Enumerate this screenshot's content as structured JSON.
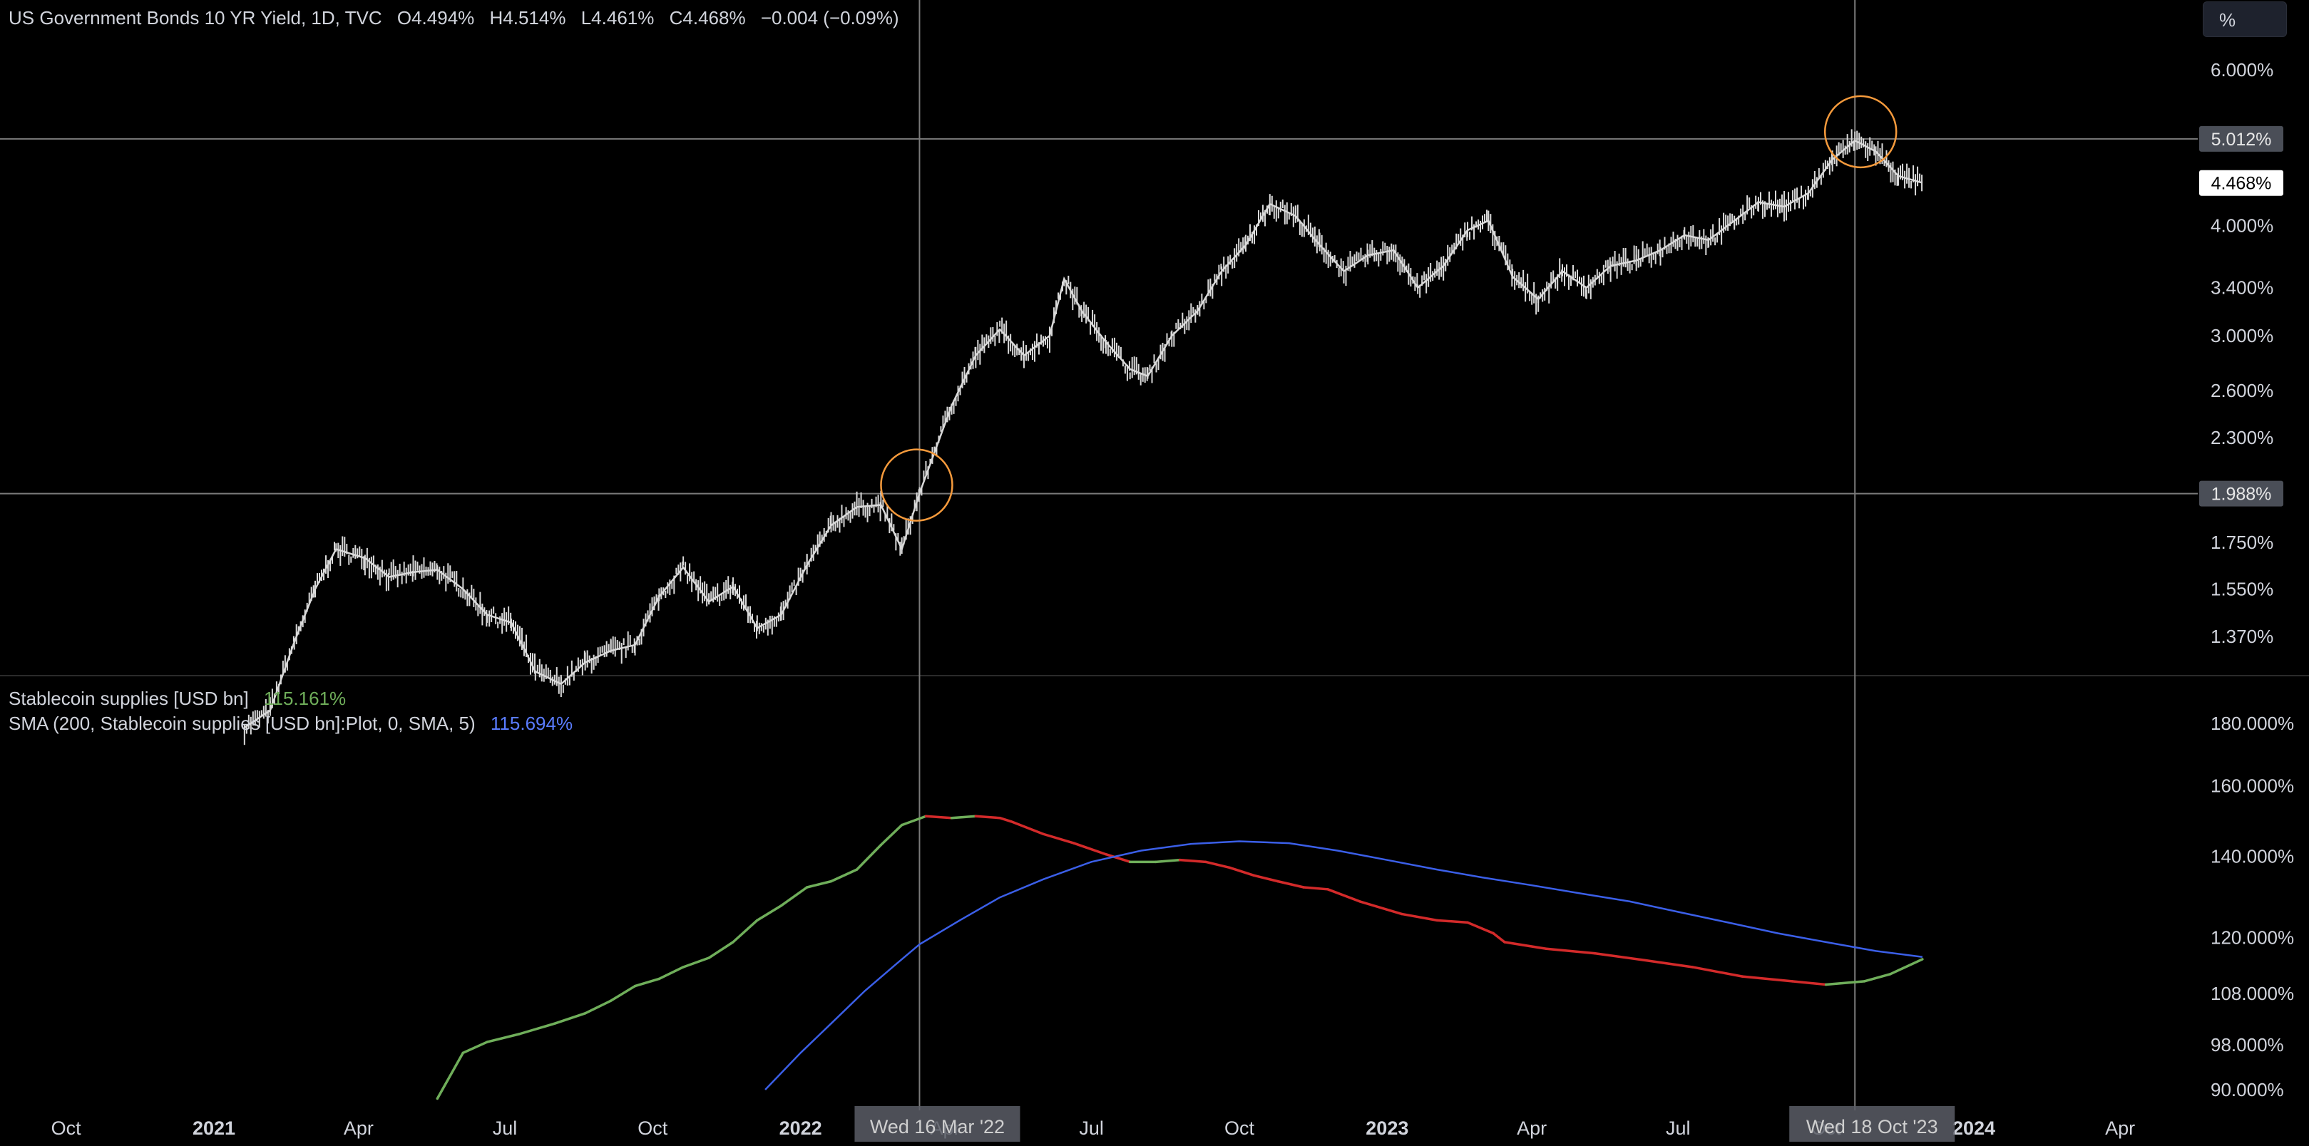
{
  "header": {
    "symbol": "US Government Bonds 10 YR Yield, 1D, TVC",
    "open": "O4.494%",
    "high": "H4.514%",
    "low": "L4.461%",
    "close": "C4.468%",
    "change": "−0.004 (−0.09%)"
  },
  "scale_button": "%",
  "crosshair": {
    "date_1": "Wed 16 Mar '22",
    "date_2": "Wed 18 Oct '23",
    "price_1": "1.988%",
    "price_2": "5.012%"
  },
  "indicator_legend": {
    "series1_name": "Stablecoin supplies [USD bn]",
    "series1_value": "115.161%",
    "series2_name": "SMA (200, Stablecoin supplies [USD bn]:Plot, 0, SMA, 5)",
    "series2_value": "115.694%"
  },
  "colors": {
    "background": "#000000",
    "price": "#d9d9d9",
    "stable_up": "#6fae5a",
    "stable_down": "#d32a2a",
    "sma": "#3b5fe8",
    "highlight_circle": "#f59a3c",
    "crosshair": "#7a7a7a"
  },
  "chart_data": [
    {
      "type": "line",
      "title": "US Government Bonds 10 YR Yield, 1D, TVC",
      "y_axis_scale": "log",
      "y_ticks": [
        "6.000%",
        "4.000%",
        "3.400%",
        "3.000%",
        "2.600%",
        "2.300%",
        "1.750%",
        "1.550%",
        "1.370%"
      ],
      "last_value_label": "4.468%",
      "x": [
        "2021-01-20",
        "2021-02-05",
        "2021-02-20",
        "2021-03-05",
        "2021-03-18",
        "2021-04-05",
        "2021-04-20",
        "2021-05-05",
        "2021-05-20",
        "2021-06-05",
        "2021-06-20",
        "2021-07-05",
        "2021-07-20",
        "2021-08-05",
        "2021-08-20",
        "2021-09-05",
        "2021-09-20",
        "2021-10-05",
        "2021-10-20",
        "2021-11-05",
        "2021-11-20",
        "2021-12-05",
        "2021-12-20",
        "2022-01-05",
        "2022-01-20",
        "2022-02-05",
        "2022-02-20",
        "2022-03-05",
        "2022-03-16",
        "2022-04-05",
        "2022-04-20",
        "2022-05-05",
        "2022-05-20",
        "2022-06-05",
        "2022-06-14",
        "2022-06-25",
        "2022-07-10",
        "2022-07-25",
        "2022-08-05",
        "2022-08-20",
        "2022-09-05",
        "2022-09-20",
        "2022-10-05",
        "2022-10-20",
        "2022-11-05",
        "2022-11-20",
        "2022-12-05",
        "2022-12-20",
        "2023-01-05",
        "2023-01-20",
        "2023-02-05",
        "2023-02-20",
        "2023-03-05",
        "2023-03-20",
        "2023-04-05",
        "2023-04-20",
        "2023-05-05",
        "2023-05-20",
        "2023-06-05",
        "2023-06-20",
        "2023-07-05",
        "2023-07-20",
        "2023-08-05",
        "2023-08-20",
        "2023-09-05",
        "2023-09-20",
        "2023-10-05",
        "2023-10-19",
        "2023-11-01",
        "2023-11-15",
        "2023-11-30"
      ],
      "y": [
        1.08,
        1.13,
        1.35,
        1.55,
        1.72,
        1.68,
        1.6,
        1.62,
        1.63,
        1.55,
        1.45,
        1.42,
        1.25,
        1.21,
        1.28,
        1.32,
        1.34,
        1.52,
        1.64,
        1.5,
        1.56,
        1.4,
        1.45,
        1.65,
        1.83,
        1.92,
        1.93,
        1.72,
        1.99,
        2.5,
        2.85,
        3.05,
        2.85,
        3.0,
        3.48,
        3.2,
        2.95,
        2.75,
        2.7,
        3.0,
        3.2,
        3.55,
        3.8,
        4.23,
        4.1,
        3.8,
        3.55,
        3.7,
        3.75,
        3.4,
        3.6,
        3.95,
        4.05,
        3.5,
        3.3,
        3.55,
        3.4,
        3.6,
        3.65,
        3.75,
        3.9,
        3.85,
        4.05,
        4.25,
        4.2,
        4.35,
        4.75,
        4.99,
        4.85,
        4.55,
        4.47
      ]
    },
    {
      "type": "line",
      "y_axis_scale": "log",
      "y_ticks": [
        "180.000%",
        "160.000%",
        "140.000%",
        "120.000%",
        "108.000%",
        "98.000%",
        "90.000%"
      ],
      "series": [
        {
          "name": "Stablecoin supplies [USD bn]",
          "x": [
            "2021-05-20",
            "2021-06-05",
            "2021-06-20",
            "2021-07-10",
            "2021-08-01",
            "2021-08-20",
            "2021-09-05",
            "2021-09-20",
            "2021-10-05",
            "2021-10-20",
            "2021-11-05",
            "2021-11-20",
            "2021-12-05",
            "2021-12-20",
            "2022-01-05",
            "2022-01-20",
            "2022-02-05",
            "2022-02-20",
            "2022-03-05",
            "2022-03-20",
            "2022-04-05",
            "2022-04-20",
            "2022-05-05",
            "2022-05-12",
            "2022-06-01",
            "2022-06-20",
            "2022-07-10",
            "2022-07-25",
            "2022-08-10",
            "2022-08-25",
            "2022-09-10",
            "2022-09-25",
            "2022-10-10",
            "2022-10-25",
            "2022-11-10",
            "2022-11-25",
            "2022-12-15",
            "2023-01-10",
            "2023-02-01",
            "2023-02-20",
            "2023-03-08",
            "2023-03-15",
            "2023-04-10",
            "2023-05-10",
            "2023-06-10",
            "2023-07-10",
            "2023-08-10",
            "2023-09-10",
            "2023-10-01",
            "2023-10-25",
            "2023-11-10",
            "2023-11-30"
          ],
          "values": [
            88.5,
            96.5,
            98.5,
            100.0,
            102.0,
            104.0,
            106.5,
            109.5,
            111.0,
            113.5,
            115.5,
            119.0,
            124.0,
            127.5,
            132.0,
            133.5,
            136.5,
            143.0,
            148.5,
            151.0,
            150.5,
            151.0,
            150.5,
            149.5,
            146.0,
            143.5,
            140.5,
            138.5,
            138.5,
            139.0,
            138.5,
            137.0,
            135.0,
            133.5,
            132.0,
            131.5,
            128.5,
            125.5,
            124.0,
            123.5,
            121.0,
            119.0,
            117.5,
            116.5,
            115.0,
            113.5,
            111.5,
            110.5,
            109.8,
            110.5,
            112.0,
            115.2
          ]
        },
        {
          "name": "SMA (200, Stablecoin supplies [USD bn]:Plot, 0, SMA, 5)",
          "x": [
            "2021-12-10",
            "2022-01-01",
            "2022-01-20",
            "2022-02-10",
            "2022-03-01",
            "2022-03-16",
            "2022-04-10",
            "2022-05-05",
            "2022-06-01",
            "2022-07-01",
            "2022-08-01",
            "2022-09-01",
            "2022-10-01",
            "2022-11-01",
            "2022-12-01",
            "2023-01-01",
            "2023-02-01",
            "2023-03-01",
            "2023-04-01",
            "2023-05-01",
            "2023-06-01",
            "2023-07-01",
            "2023-08-01",
            "2023-09-01",
            "2023-10-01",
            "2023-11-01",
            "2023-11-30"
          ],
          "values": [
            90.0,
            96.5,
            102.0,
            108.5,
            114.0,
            118.5,
            124.0,
            129.5,
            134.0,
            138.5,
            141.5,
            143.3,
            144.0,
            143.5,
            141.5,
            139.0,
            136.5,
            134.5,
            132.5,
            130.5,
            128.5,
            126.0,
            123.5,
            121.0,
            119.0,
            117.0,
            115.7
          ]
        }
      ]
    }
  ],
  "x_axis_labels": [
    "Oct",
    "2021",
    "Apr",
    "Jul",
    "Oct",
    "2022",
    "Apr",
    "Jul",
    "Oct",
    "2023",
    "Apr",
    "Jul",
    "Oct",
    "2024",
    "Apr"
  ],
  "x_axis_dates": [
    "2020-10-01",
    "2021-01-01",
    "2021-04-01",
    "2021-07-01",
    "2021-10-01",
    "2022-01-01",
    "2022-04-01",
    "2022-07-01",
    "2022-10-01",
    "2023-01-01",
    "2023-04-01",
    "2023-07-01",
    "2023-10-01",
    "2024-01-01",
    "2024-04-01"
  ]
}
